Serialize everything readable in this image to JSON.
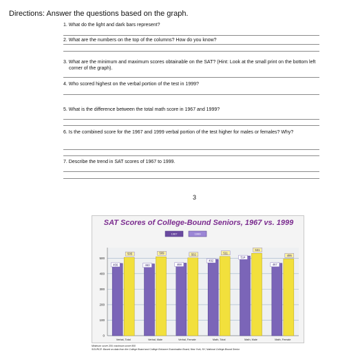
{
  "directions": "Directions: Answer the questions based on the graph.",
  "questions": [
    "1. What do the light and dark bars represent?",
    "2. What are the numbers on the top of the columns? How do you know?",
    "3. What are the minimum and maximum scores obtainable on the SAT? (Hint: Look at the small print on the bottom left corner of the graph).",
    "4. Who scored highest on the verbal portion of the test in 1999?",
    "5. What is the difference between the total math score in 1967 and 1999?",
    "6. Is the combined score for the 1967 and 1999 verbal portion of the test higher for males or females? Why?",
    "7. Describe the trend in SAT scores of 1967 to 1999."
  ],
  "page_number": "3",
  "chart_data": {
    "type": "bar",
    "title": "SAT Scores of College-Bound Seniors, 1967 vs. 1999",
    "categories": [
      "Verbal, Total",
      "Verbal, Male",
      "Verbal, Female",
      "Math, Total",
      "Math, Male",
      "Math, Female"
    ],
    "series": [
      {
        "name": "1967",
        "values": [
          466,
          463,
          468,
          492,
          514,
          467
        ]
      },
      {
        "name": "1999",
        "values": [
          505,
          509,
          502,
          511,
          531,
          495
        ]
      }
    ],
    "ylim": [
      0,
      550
    ],
    "yticks": [
      0,
      100,
      200,
      300,
      400,
      500
    ],
    "legend_position": "top-center",
    "notes": [
      "Minimum score 200; maximum score 800",
      "SOURCE: Based on data from the College Board and College Entrance Examination Board, New York, NY, National College-Bound Senior"
    ],
    "colors": {
      "dark": "#7b65b8",
      "light": "#f2e03c",
      "title": "#7b2c8f",
      "label_bg": "#6a4aa0"
    }
  }
}
